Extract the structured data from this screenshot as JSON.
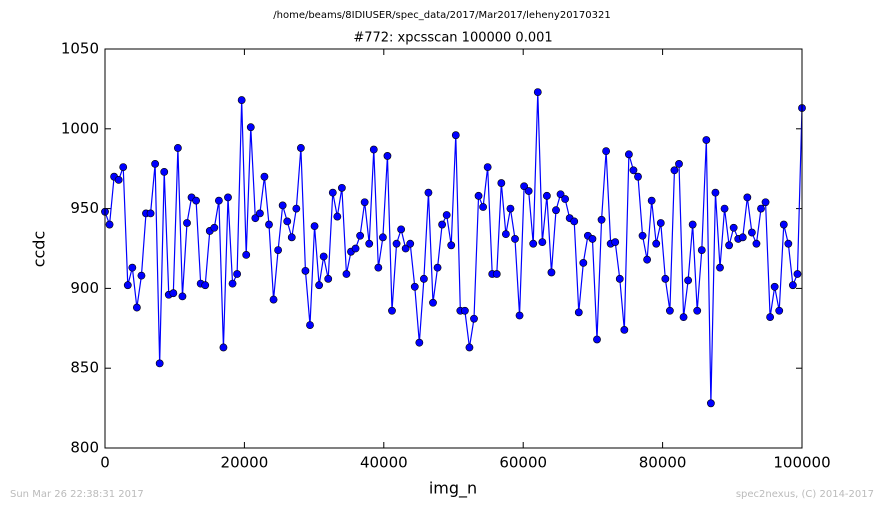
{
  "chart_data": {
    "type": "line",
    "suptitle": "/home/beams/8IDIUSER/spec_data/2017/Mar2017/leheny20170321",
    "title": "#772: xpcsscan 100000 0.001",
    "xlabel": "img_n",
    "ylabel": "ccdc",
    "footer_left": "Sun Mar 26 22:38:31 2017",
    "footer_right": "spec2nexus, (C) 2014-2017",
    "xlim": [
      0,
      100000
    ],
    "xticks": [
      0,
      20000,
      40000,
      60000,
      80000,
      100000
    ],
    "ylim": [
      800,
      1050
    ],
    "yticks": [
      800,
      850,
      900,
      950,
      1000,
      1050
    ],
    "grid": false,
    "x": [
      0,
      654,
      1307,
      1961,
      2614,
      3268,
      3922,
      4575,
      5229,
      5882,
      6536,
      7190,
      7843,
      8497,
      9150,
      9804,
      10458,
      11111,
      11765,
      12418,
      13072,
      13725,
      14379,
      15033,
      15686,
      16340,
      16993,
      17647,
      18301,
      18954,
      19608,
      20261,
      20915,
      21569,
      22222,
      22876,
      23529,
      24183,
      24837,
      25490,
      26144,
      26797,
      27451,
      28105,
      28758,
      29412,
      30065,
      30719,
      31373,
      32026,
      32680,
      33333,
      33987,
      34641,
      35294,
      35948,
      36601,
      37255,
      37908,
      38562,
      39216,
      39869,
      40523,
      41176,
      41830,
      42484,
      43137,
      43791,
      44444,
      45098,
      45752,
      46405,
      47059,
      47712,
      48366,
      49020,
      49673,
      50327,
      50980,
      51634,
      52288,
      52941,
      53595,
      54248,
      54902,
      55556,
      56209,
      56863,
      57516,
      58170,
      58824,
      59477,
      60131,
      60784,
      61438,
      62092,
      62745,
      63399,
      64052,
      64706,
      65359,
      66013,
      66667,
      67320,
      67974,
      68627,
      69281,
      69935,
      70588,
      71242,
      71895,
      72549,
      73203,
      73856,
      74510,
      75163,
      75817,
      76471,
      77124,
      77778,
      78431,
      79085,
      79739,
      80392,
      81046,
      81699,
      82353,
      83007,
      83660,
      84314,
      84967,
      85621,
      86275,
      86928,
      87582,
      88235,
      88889,
      89542,
      90196,
      90850,
      91503,
      92157,
      92810,
      93464,
      94118,
      94771,
      95425,
      96078,
      96732,
      97386,
      98039,
      98693,
      99346,
      100000
    ],
    "series": [
      {
        "name": "ccdc",
        "color": "#0000ff",
        "values": [
          948,
          940,
          970,
          968,
          976,
          902,
          913,
          888,
          908,
          947,
          947,
          978,
          853,
          973,
          896,
          897,
          988,
          895,
          941,
          957,
          955,
          903,
          902,
          936,
          938,
          955,
          863,
          957,
          903,
          909,
          1018,
          921,
          1001,
          944,
          947,
          970,
          940,
          893,
          924,
          952,
          942,
          932,
          950,
          988,
          911,
          877,
          939,
          902,
          920,
          906,
          960,
          945,
          963,
          909,
          923,
          925,
          933,
          954,
          928,
          987,
          913,
          932,
          983,
          886,
          928,
          937,
          925,
          928,
          901,
          866,
          906,
          960,
          891,
          913,
          940,
          946,
          927,
          996,
          886,
          886,
          863,
          881,
          958,
          951,
          976,
          909,
          909,
          966,
          934,
          950,
          931,
          883,
          964,
          961,
          928,
          1023,
          929,
          958,
          910,
          949,
          959,
          956,
          944,
          942,
          885,
          916,
          933,
          931,
          868,
          943,
          986,
          928,
          929,
          906,
          874,
          984,
          974,
          970,
          933,
          918,
          955,
          928,
          941,
          906,
          886,
          974,
          978,
          882,
          905,
          940,
          886,
          924,
          993,
          828,
          960,
          913,
          950,
          927,
          938,
          931,
          932,
          957,
          935,
          928,
          950,
          954,
          882,
          901,
          886,
          940,
          928,
          902,
          909,
          1013
        ]
      }
    ]
  }
}
